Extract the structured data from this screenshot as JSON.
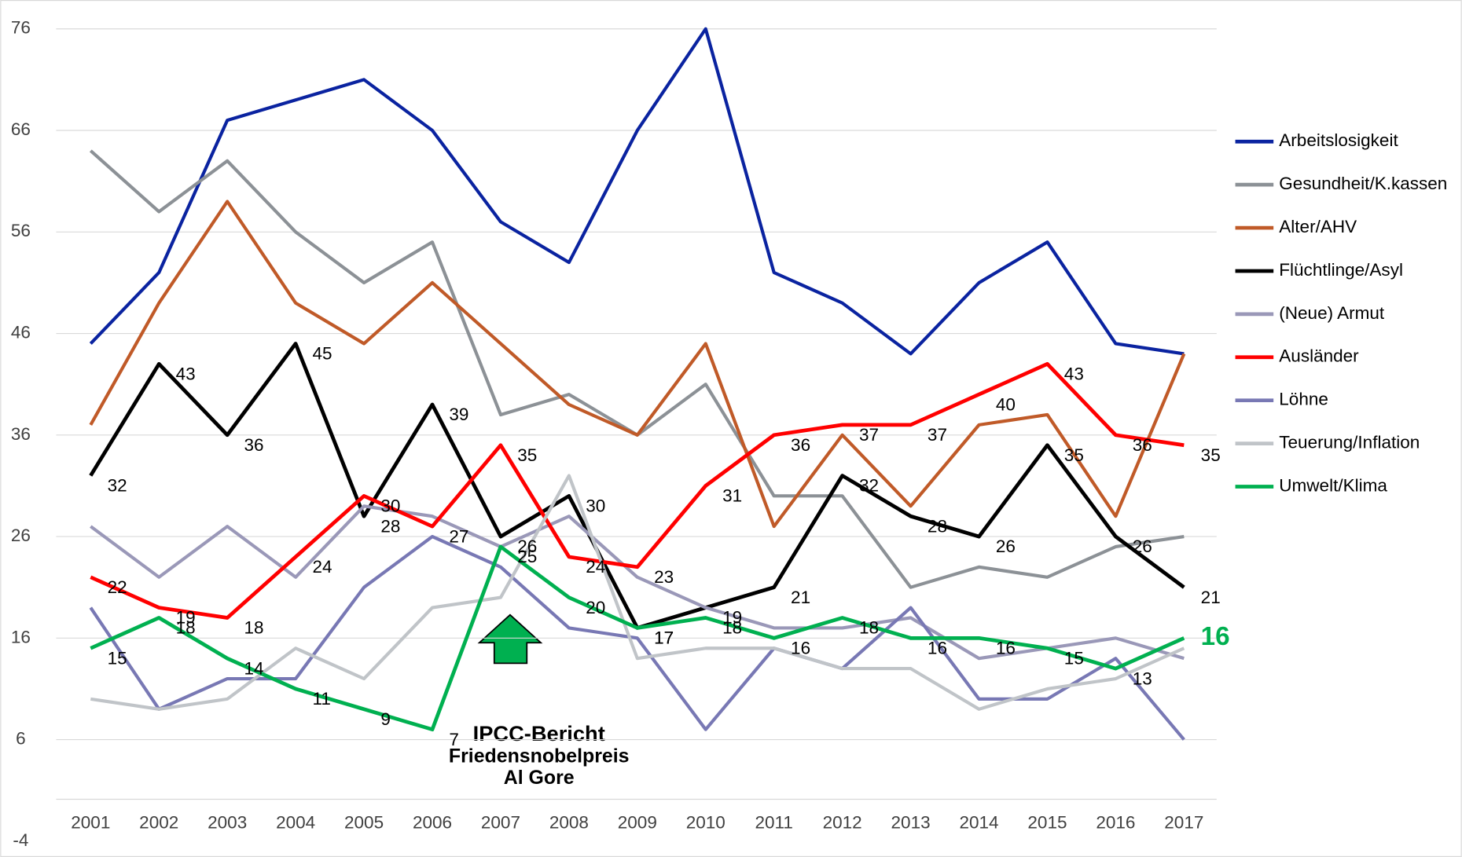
{
  "chart_data": {
    "type": "line",
    "categories": [
      "2001",
      "2002",
      "2003",
      "2004",
      "2005",
      "2006",
      "2007",
      "2008",
      "2009",
      "2010",
      "2011",
      "2012",
      "2013",
      "2014",
      "2015",
      "2016",
      "2017"
    ],
    "ylim": [
      -4,
      76
    ],
    "yticks": [
      76,
      66,
      56,
      46,
      36,
      26,
      16,
      6,
      -4
    ],
    "grid": true,
    "legend": "right",
    "series": [
      {
        "name": "Arbeitslosigkeit",
        "color": "#0a23a0",
        "values": [
          45,
          52,
          67,
          69,
          71,
          66,
          57,
          53,
          66,
          76,
          52,
          49,
          44,
          51,
          55,
          45,
          44
        ]
      },
      {
        "name": "Gesundheit/K.kassen",
        "color": "#8c9196",
        "values": [
          64,
          58,
          63,
          56,
          51,
          55,
          38,
          40,
          36,
          41,
          30,
          30,
          21,
          23,
          22,
          25,
          26
        ]
      },
      {
        "name": "Alter/AHV",
        "color": "#c05a28",
        "values": [
          37,
          49,
          59,
          49,
          45,
          51,
          45,
          39,
          36,
          45,
          27,
          36,
          29,
          37,
          38,
          28,
          44
        ]
      },
      {
        "name": "Flüchtlinge/Asyl",
        "color": "#000000",
        "labels": true,
        "values": [
          32,
          43,
          36,
          45,
          28,
          39,
          26,
          30,
          17,
          19,
          21,
          32,
          28,
          26,
          35,
          26,
          21
        ]
      },
      {
        "name": "(Neue) Armut",
        "color": "#9a98b8",
        "values": [
          27,
          22,
          27,
          22,
          29,
          28,
          25,
          28,
          22,
          19,
          17,
          17,
          18,
          14,
          15,
          16,
          14
        ]
      },
      {
        "name": "Ausländer",
        "color": "#ff0000",
        "labels": true,
        "values": [
          22,
          19,
          18,
          24,
          30,
          27,
          35,
          24,
          23,
          31,
          36,
          37,
          37,
          40,
          43,
          36,
          35
        ]
      },
      {
        "name": "Löhne",
        "color": "#7878b4",
        "values": [
          19,
          9,
          12,
          12,
          21,
          26,
          23,
          17,
          16,
          7,
          15,
          13,
          19,
          10,
          10,
          14,
          6
        ]
      },
      {
        "name": "Teuerung/Inflation",
        "color": "#c0c4c8",
        "values": [
          10,
          9,
          10,
          15,
          12,
          19,
          20,
          32,
          14,
          15,
          15,
          13,
          13,
          9,
          11,
          12,
          15
        ]
      },
      {
        "name": "Umwelt/Klima",
        "color": "#00b050",
        "labels": true,
        "values": [
          15,
          18,
          14,
          11,
          9,
          7,
          25,
          20,
          17,
          18,
          16,
          18,
          16,
          16,
          15,
          13,
          16
        ]
      }
    ],
    "annotations": [
      "IPCC-Bericht",
      "Friedensnobelpreis",
      "Al Gore"
    ]
  }
}
